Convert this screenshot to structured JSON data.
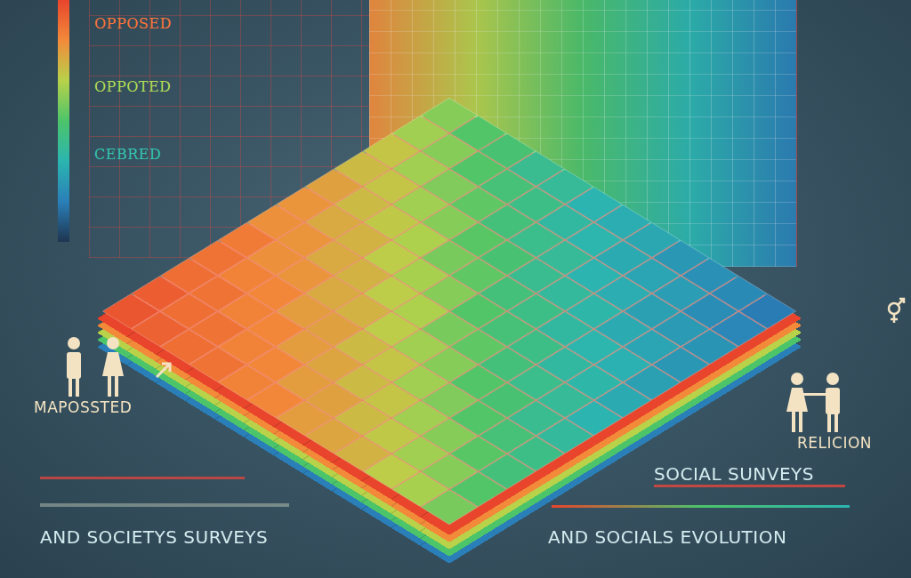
{
  "chart_data": {
    "type": "heatmap",
    "tick_labels": false,
    "colors": [
      "#1e3550",
      "#2a7fb8",
      "#2bb5b0",
      "#4cc46a",
      "#b8d24a",
      "#f28a3a",
      "#e8452c"
    ],
    "colorbar": {
      "lim": [
        0,
        100
      ],
      "ticks": [
        {
          "value": 90,
          "label": "OPPOSED"
        },
        {
          "value": 64,
          "label": "OPPOTED"
        },
        {
          "value": 36,
          "label": "CEBRED"
        }
      ]
    },
    "cells": [
      [
        59,
        51,
        48,
        41,
        39,
        33,
        31,
        29,
        24,
        22,
        20,
        16
      ],
      [
        63,
        59,
        51,
        47,
        43,
        37,
        34,
        30,
        28,
        26,
        21,
        19
      ],
      [
        70,
        63,
        58,
        53,
        46,
        42,
        39,
        33,
        31,
        27,
        25,
        23
      ],
      [
        72,
        70,
        63,
        59,
        52,
        48,
        41,
        38,
        35,
        30,
        28,
        24
      ],
      [
        78,
        72,
        69,
        65,
        57,
        53,
        46,
        43,
        37,
        34,
        32,
        27
      ],
      [
        81,
        76,
        74,
        68,
        64,
        59,
        51,
        47,
        43,
        37,
        35,
        30
      ],
      [
        82,
        81,
        76,
        74,
        68,
        65,
        57,
        53,
        46,
        42,
        39,
        33
      ],
      [
        87,
        82,
        81,
        76,
        74,
        68,
        63,
        59,
        51,
        48,
        41,
        38
      ],
      [
        89,
        85,
        84,
        79,
        78,
        72,
        70,
        63,
        58,
        51,
        47,
        43
      ],
      [
        90,
        89,
        85,
        84,
        79,
        77,
        72,
        70,
        63,
        59,
        52,
        46
      ],
      [
        94,
        90,
        89,
        85,
        84,
        79,
        78,
        72,
        69,
        63,
        59,
        51
      ],
      [
        96,
        93,
        90,
        89,
        85,
        84,
        79,
        77,
        74,
        68,
        64,
        57
      ]
    ],
    "annotations": [
      "MAPOSSTED",
      "AND SOCIETYS SURVEYS",
      "RELICION",
      "SOCIAL SUNVEYS",
      "AND SOCIALS EVOLUTION"
    ]
  }
}
